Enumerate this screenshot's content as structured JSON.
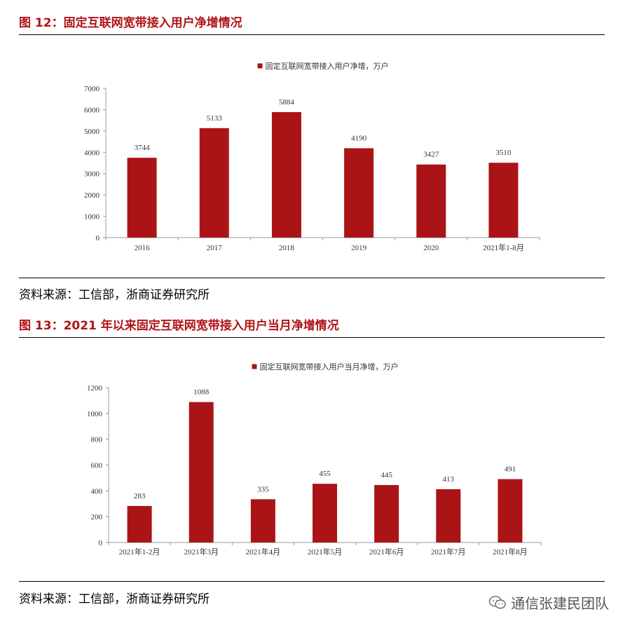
{
  "figures": [
    {
      "title": "图 12：固定互联网宽带接入用户净增情况",
      "source": "资料来源：工信部，浙商证券研究所"
    },
    {
      "title": "图 13：2021 年以来固定互联网宽带接入用户当月净增情况",
      "source": "资料来源：工信部，浙商证券研究所"
    }
  ],
  "watermark": "通信张建民团队",
  "chart_data": [
    {
      "type": "bar",
      "categories": [
        "2016",
        "2017",
        "2018",
        "2019",
        "2020",
        "2021年1-8月"
      ],
      "series": [
        {
          "name": "固定互联网宽带接入用户净增，万户",
          "values": [
            3744,
            5133,
            5884,
            4190,
            3427,
            3510
          ],
          "color": "#aa1416"
        }
      ],
      "yticks": [
        "0",
        "1000",
        "2000",
        "3000",
        "4000",
        "5000",
        "6000",
        "7000"
      ],
      "ylim": [
        0,
        7000
      ],
      "grid": false,
      "legend": "top"
    },
    {
      "type": "bar",
      "categories": [
        "2021年1-2月",
        "2021年3月",
        "2021年4月",
        "2021年5月",
        "2021年6月",
        "2021年7月",
        "2021年8月"
      ],
      "series": [
        {
          "name": "固定互联网宽带接入用户当月净增，万户",
          "values": [
            283,
            1088,
            335,
            455,
            445,
            413,
            491
          ],
          "color": "#aa1416"
        }
      ],
      "yticks": [
        "0",
        "200",
        "400",
        "600",
        "800",
        "1000",
        "1200"
      ],
      "ylim": [
        0,
        1200
      ],
      "grid": false,
      "legend": "top"
    }
  ]
}
